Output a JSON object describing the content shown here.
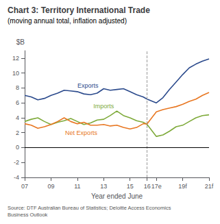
{
  "chart_data": {
    "type": "line",
    "title": "Chart 3: Territory International Trade",
    "subtitle": "(moving annual total, inflation adjusted)",
    "x_label": "Year ended June",
    "y_label": "$B",
    "source": "Source: DTF Australian Bureau of Statistics; Deloitte Access Economics\nBusiness Outlook",
    "x": [
      7,
      7.5,
      8,
      8.5,
      9,
      9.5,
      10,
      10.5,
      11,
      11.5,
      12,
      12.5,
      13,
      13.5,
      14,
      14.5,
      15,
      15.5,
      16,
      16.3,
      17,
      17.5,
      18,
      18.5,
      19,
      19.5,
      20,
      20.5,
      21
    ],
    "series": [
      {
        "name": "Exports",
        "color": "#2B4A8C",
        "values": [
          7.0,
          6.8,
          6.4,
          6.6,
          7.0,
          7.3,
          7.7,
          7.6,
          7.5,
          7.2,
          7.1,
          7.3,
          7.9,
          7.7,
          7.8,
          7.9,
          7.5,
          7.1,
          6.8,
          6.5,
          6.0,
          6.7,
          7.8,
          8.8,
          9.8,
          10.7,
          11.2,
          11.6,
          11.9
        ]
      },
      {
        "name": "Imports",
        "color": "#7EAA3A",
        "values": [
          3.5,
          3.8,
          4.0,
          3.5,
          3.1,
          3.4,
          3.6,
          3.9,
          3.5,
          3.1,
          3.3,
          3.7,
          3.8,
          4.3,
          4.9,
          4.3,
          4.0,
          3.6,
          3.4,
          3.1,
          1.5,
          1.7,
          2.2,
          2.8,
          3.0,
          3.5,
          4.0,
          4.3,
          4.4
        ]
      },
      {
        "name": "Net Exports",
        "color": "#E87722",
        "values": [
          3.2,
          3.0,
          2.6,
          2.8,
          3.1,
          3.5,
          4.0,
          3.5,
          3.2,
          3.4,
          3.0,
          3.0,
          3.1,
          2.9,
          3.0,
          2.7,
          2.5,
          2.7,
          3.2,
          3.2,
          4.8,
          5.1,
          5.3,
          5.5,
          5.8,
          6.2,
          6.5,
          7.0,
          7.4
        ]
      }
    ],
    "xlim": [
      7,
      21
    ],
    "xticks": [
      {
        "value": 7,
        "label": "07"
      },
      {
        "value": 9,
        "label": "09"
      },
      {
        "value": 11,
        "label": "11"
      },
      {
        "value": 13,
        "label": "13"
      },
      {
        "value": 15,
        "label": "15"
      },
      {
        "value": 16.3,
        "label": "16"
      },
      {
        "value": 17,
        "label": "17e"
      },
      {
        "value": 19,
        "label": "19f"
      },
      {
        "value": 21,
        "label": "21f"
      }
    ],
    "ylim": [
      -4,
      13
    ],
    "yticks": [
      -4,
      -2,
      0,
      2,
      4,
      6,
      8,
      10,
      12
    ],
    "grid": false,
    "vlines": [
      {
        "x": 16.3,
        "color": "#999999",
        "line_style": "dashed"
      }
    ],
    "hlines": [
      {
        "y": 0,
        "color": "#000000",
        "line_style": "solid"
      }
    ],
    "annotations": [
      {
        "text": "Exports",
        "x": 11.8,
        "y": 8.3,
        "color": "#2B4A8C"
      },
      {
        "text": "Imports",
        "x": 13.0,
        "y": 5.6,
        "color": "#7EAA3A"
      },
      {
        "text": "Net Exports",
        "x": 11.3,
        "y": 2.0,
        "color": "#E87722"
      }
    ]
  }
}
